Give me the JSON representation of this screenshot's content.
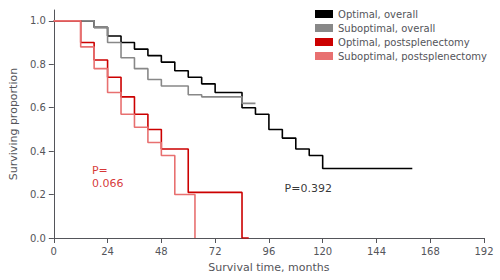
{
  "chart_data": {
    "type": "step",
    "xlabel": "Survival time, months",
    "ylabel": "Surviving proportion",
    "xlim": [
      0,
      192
    ],
    "ylim": [
      0.0,
      1.05
    ],
    "xticks": [
      0,
      24,
      48,
      72,
      96,
      120,
      144,
      168,
      192
    ],
    "yticks": [
      {
        "value": 0.0,
        "label": "0.0"
      },
      0.2,
      0.4,
      0.6,
      0.8,
      {
        "value": 1.0,
        "label": "1.0"
      }
    ],
    "grid": false,
    "legend": "upper right",
    "annotations": [
      {
        "text": "P=\n0.066",
        "x": 17,
        "y": 0.21,
        "color": "#cc0000"
      },
      {
        "text": "P=0.392",
        "x": 103,
        "y": 0.19,
        "color": "#000000"
      }
    ],
    "series": [
      {
        "name": "Optimal, overall",
        "color": "#000000",
        "x": [
          0,
          12,
          18,
          24,
          30,
          36,
          42,
          48,
          54,
          60,
          66,
          72,
          84,
          90,
          96,
          102,
          108,
          114,
          120,
          132,
          144,
          160
        ],
        "values": [
          1.0,
          1.0,
          0.97,
          0.93,
          0.9,
          0.87,
          0.84,
          0.81,
          0.77,
          0.74,
          0.71,
          0.67,
          0.6,
          0.57,
          0.5,
          0.46,
          0.41,
          0.38,
          0.32,
          0.32,
          0.32,
          0.32
        ]
      },
      {
        "name": "Suboptimal, overall",
        "color": "#888888",
        "x": [
          0,
          12,
          18,
          24,
          30,
          36,
          42,
          48,
          60,
          66,
          84,
          90
        ],
        "values": [
          1.0,
          1.0,
          0.97,
          0.9,
          0.83,
          0.78,
          0.73,
          0.7,
          0.66,
          0.65,
          0.62,
          0.62
        ]
      },
      {
        "name": "Optimal, postsplenectomy",
        "color": "#cc0000",
        "x": [
          0,
          6,
          12,
          18,
          24,
          30,
          36,
          42,
          48,
          60,
          72,
          78,
          84,
          87
        ],
        "values": [
          1.0,
          1.0,
          0.9,
          0.82,
          0.74,
          0.65,
          0.57,
          0.5,
          0.41,
          0.21,
          0.21,
          0.21,
          0.0,
          0.0
        ]
      },
      {
        "name": "Suboptimal, postsplenectomy",
        "color": "#e87070",
        "x": [
          0,
          6,
          12,
          18,
          24,
          30,
          36,
          42,
          48,
          54,
          60,
          63
        ],
        "values": [
          1.0,
          1.0,
          0.88,
          0.78,
          0.67,
          0.57,
          0.51,
          0.44,
          0.38,
          0.2,
          0.2,
          0.0
        ]
      }
    ]
  }
}
